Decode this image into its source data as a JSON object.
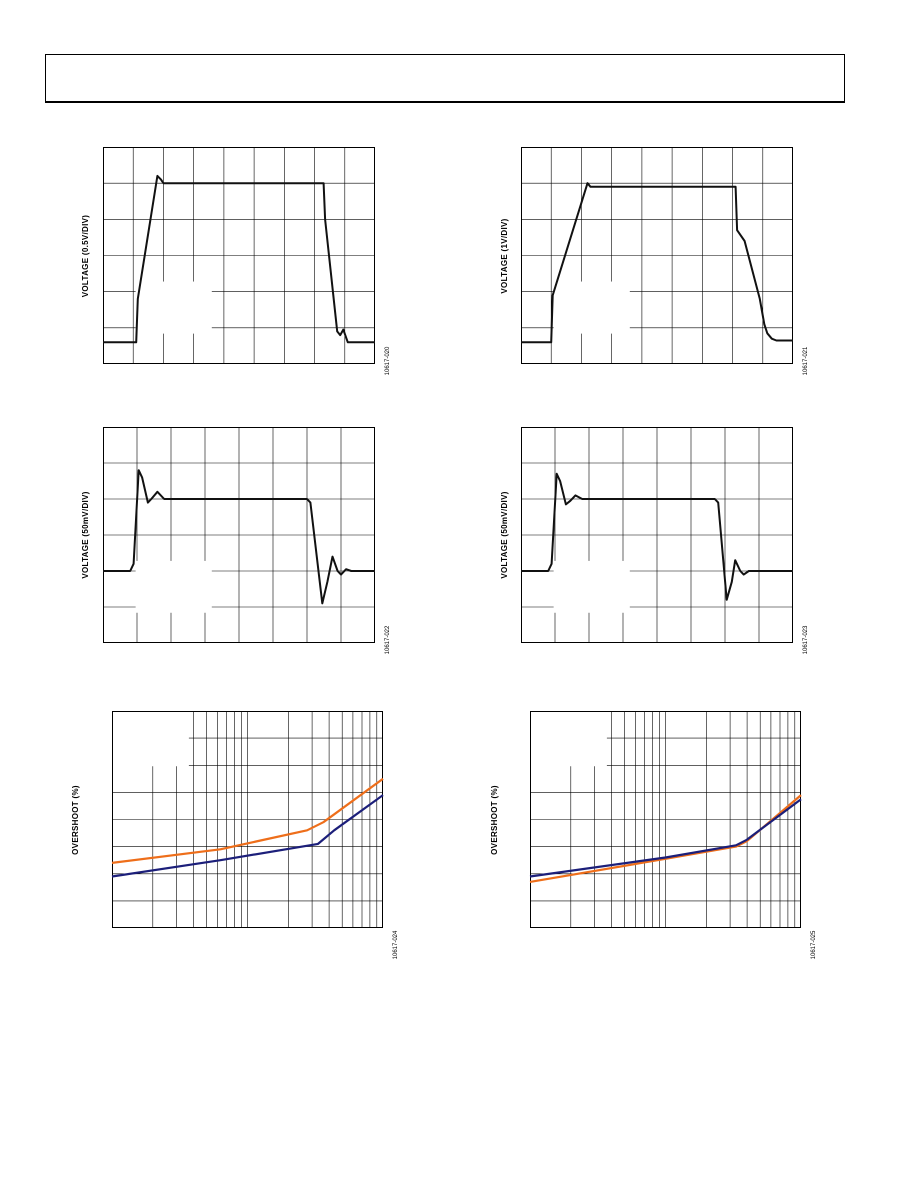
{
  "charts": [
    {
      "id": "tl",
      "chart_data": {
        "type": "line",
        "title": "",
        "ylabel": "VOLTAGE (0.5V/DIV)",
        "xlabel": "",
        "grid": true,
        "divisions": {
          "x": 9,
          "y": 6
        },
        "series": [
          {
            "name": "",
            "points": [
              [
                0,
                0.6
              ],
              [
                1.1,
                0.6
              ],
              [
                1.15,
                1.8
              ],
              [
                1.8,
                5.2
              ],
              [
                1.92,
                5.1
              ],
              [
                2.0,
                5.0
              ],
              [
                2.2,
                5.0
              ],
              [
                7.3,
                5.0
              ],
              [
                7.35,
                4.0
              ],
              [
                7.75,
                0.9
              ],
              [
                7.85,
                0.8
              ],
              [
                7.95,
                0.95
              ],
              [
                8.1,
                0.6
              ],
              [
                9,
                0.6
              ]
            ]
          }
        ]
      },
      "fig_id": "10617-020"
    },
    {
      "id": "tr",
      "chart_data": {
        "type": "line",
        "title": "",
        "ylabel": "VOLTAGE (1V/DIV)",
        "xlabel": "",
        "grid": true,
        "divisions": {
          "x": 9,
          "y": 6
        },
        "series": [
          {
            "name": "",
            "points": [
              [
                0,
                0.6
              ],
              [
                1.0,
                0.6
              ],
              [
                1.05,
                1.9
              ],
              [
                2.2,
                5.0
              ],
              [
                2.3,
                4.9
              ],
              [
                2.5,
                4.9
              ],
              [
                7.1,
                4.9
              ],
              [
                7.15,
                3.7
              ],
              [
                7.4,
                3.4
              ],
              [
                7.9,
                1.8
              ],
              [
                8.05,
                1.1
              ],
              [
                8.15,
                0.85
              ],
              [
                8.3,
                0.7
              ],
              [
                8.45,
                0.65
              ],
              [
                9,
                0.65
              ]
            ]
          }
        ]
      },
      "fig_id": "10617-021"
    },
    {
      "id": "ml",
      "chart_data": {
        "type": "line",
        "title": "",
        "ylabel": "VOLTAGE (50mV/DIV)",
        "xlabel": "",
        "grid": true,
        "divisions": {
          "x": 8,
          "y": 6
        },
        "series": [
          {
            "name": "",
            "points": [
              [
                0,
                2.0
              ],
              [
                0.8,
                2.0
              ],
              [
                0.9,
                2.2
              ],
              [
                1.05,
                4.8
              ],
              [
                1.15,
                4.6
              ],
              [
                1.32,
                3.9
              ],
              [
                1.42,
                4.0
              ],
              [
                1.6,
                4.2
              ],
              [
                1.8,
                4.0
              ],
              [
                6.0,
                4.0
              ],
              [
                6.1,
                3.9
              ],
              [
                6.45,
                1.1
              ],
              [
                6.6,
                1.7
              ],
              [
                6.75,
                2.4
              ],
              [
                6.9,
                2.0
              ],
              [
                7.0,
                1.9
              ],
              [
                7.15,
                2.05
              ],
              [
                7.3,
                2.0
              ],
              [
                8,
                2.0
              ]
            ]
          }
        ]
      },
      "fig_id": "10617-022"
    },
    {
      "id": "mr",
      "chart_data": {
        "type": "line",
        "title": "",
        "ylabel": "VOLTAGE (50mV/DIV)",
        "xlabel": "",
        "grid": true,
        "divisions": {
          "x": 8,
          "y": 6
        },
        "series": [
          {
            "name": "",
            "points": [
              [
                0,
                2.0
              ],
              [
                0.8,
                2.0
              ],
              [
                0.9,
                2.2
              ],
              [
                1.05,
                4.7
              ],
              [
                1.15,
                4.5
              ],
              [
                1.32,
                3.85
              ],
              [
                1.45,
                3.95
              ],
              [
                1.6,
                4.1
              ],
              [
                1.8,
                4.0
              ],
              [
                5.7,
                4.0
              ],
              [
                5.8,
                3.9
              ],
              [
                6.05,
                1.2
              ],
              [
                6.2,
                1.7
              ],
              [
                6.3,
                2.3
              ],
              [
                6.45,
                2.0
              ],
              [
                6.55,
                1.9
              ],
              [
                6.7,
                2.0
              ],
              [
                8,
                2.0
              ]
            ]
          }
        ]
      },
      "fig_id": "10617-023"
    },
    {
      "id": "bl",
      "chart_data": {
        "type": "line",
        "title": "",
        "ylabel": "OVERSHOOT (%)",
        "xlabel": "",
        "grid": true,
        "log_x": true,
        "divisions": {
          "y": 8
        },
        "series": [
          {
            "name": "",
            "color": "#ee6e1a",
            "points": [
              [
                0,
                2.4
              ],
              [
                0.4,
                2.9
              ],
              [
                0.72,
                3.6
              ],
              [
                0.78,
                3.9
              ],
              [
                1,
                5.5
              ]
            ]
          },
          {
            "name": "",
            "color": "#1c1f7a",
            "points": [
              [
                0,
                1.9
              ],
              [
                0.4,
                2.5
              ],
              [
                0.76,
                3.1
              ],
              [
                0.82,
                3.6
              ],
              [
                1,
                4.9
              ]
            ]
          }
        ]
      },
      "fig_id": "10617-024"
    },
    {
      "id": "br",
      "chart_data": {
        "type": "line",
        "title": "",
        "ylabel": "OVERSHOOT (%)",
        "xlabel": "",
        "grid": true,
        "log_x": true,
        "divisions": {
          "y": 8
        },
        "series": [
          {
            "name": "",
            "color": "#ee6e1a",
            "points": [
              [
                0,
                1.7
              ],
              [
                0.5,
                2.55
              ],
              [
                0.76,
                3.0
              ],
              [
                0.8,
                3.2
              ],
              [
                1,
                4.9
              ]
            ]
          },
          {
            "name": "",
            "color": "#1c1f7a",
            "points": [
              [
                0,
                1.9
              ],
              [
                0.5,
                2.6
              ],
              [
                0.76,
                3.05
              ],
              [
                0.8,
                3.25
              ],
              [
                1,
                4.75
              ]
            ]
          }
        ]
      },
      "fig_id": "10617-025"
    }
  ]
}
